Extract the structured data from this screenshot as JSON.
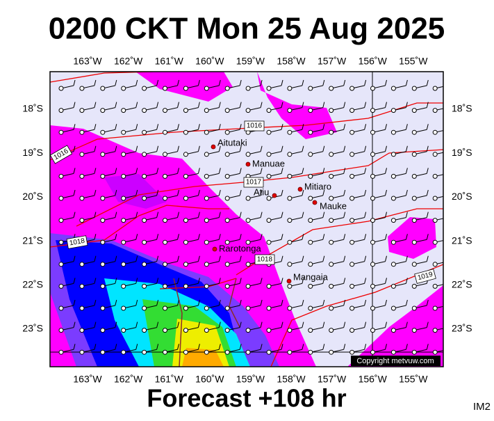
{
  "title": "0200 CKT Mon 25 Aug 2025",
  "footer": "Forecast +108 hr",
  "corner_code": "IM2",
  "copyright": "Copyright metvuw.com",
  "map": {
    "lon_labels": [
      "163˚W",
      "162˚W",
      "161˚W",
      "160˚W",
      "159˚W",
      "158˚W",
      "157˚W",
      "156˚W",
      "155˚W"
    ],
    "lat_labels": [
      "18˚S",
      "19˚S",
      "20˚S",
      "21˚S",
      "22˚S",
      "23˚S"
    ],
    "places": [
      "Aitutaki",
      "Manuae",
      "Atiu",
      "Mitiaro",
      "Mauke",
      "Rarotonga",
      "Mangaia"
    ],
    "isobar_labels": [
      "1016",
      "1016",
      "1017",
      "1018",
      "1018",
      "1019"
    ]
  }
}
